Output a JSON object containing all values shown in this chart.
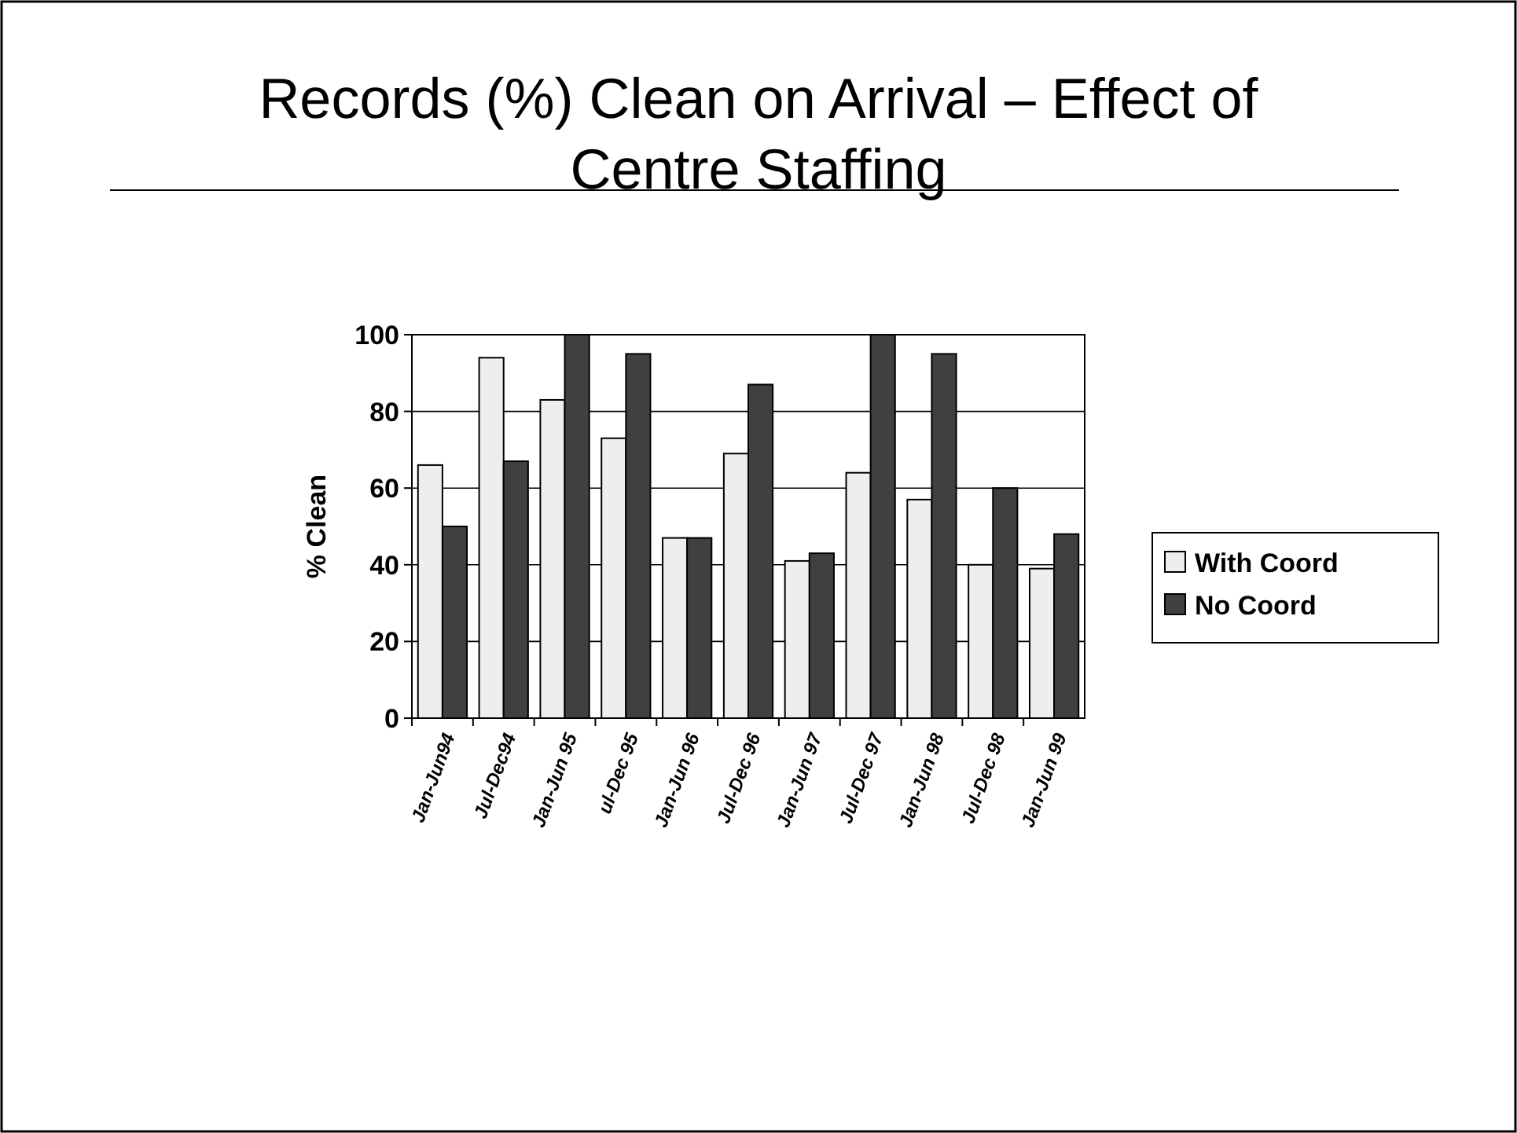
{
  "chart_data": {
    "type": "bar",
    "title": "Records (%) Clean on Arrival – Effect of Centre Staffing",
    "ylabel": "% Clean",
    "categories": [
      "Jan-Jun94",
      "Jul-Dec94",
      "Jan-Jun 95",
      "ul-Dec 95",
      "Jan-Jun 96",
      "Jul-Dec 96",
      "Jan-Jun 97",
      "Jul-Dec 97",
      "Jan-Jun 98",
      "Jul-Dec 98",
      "Jan-Jun 99"
    ],
    "series": [
      {
        "name": "With Coord",
        "color": "#eeeeee",
        "values": [
          66,
          94,
          83,
          73,
          47,
          69,
          41,
          64,
          57,
          40,
          39
        ]
      },
      {
        "name": "No Coord",
        "color": "#404040",
        "values": [
          50,
          67,
          100,
          95,
          47,
          87,
          43,
          100,
          95,
          60,
          48
        ]
      }
    ],
    "ylim": [
      0,
      100
    ],
    "yticks": [
      0,
      20,
      40,
      60,
      80,
      100
    ],
    "grid": "y",
    "legend": "right"
  }
}
